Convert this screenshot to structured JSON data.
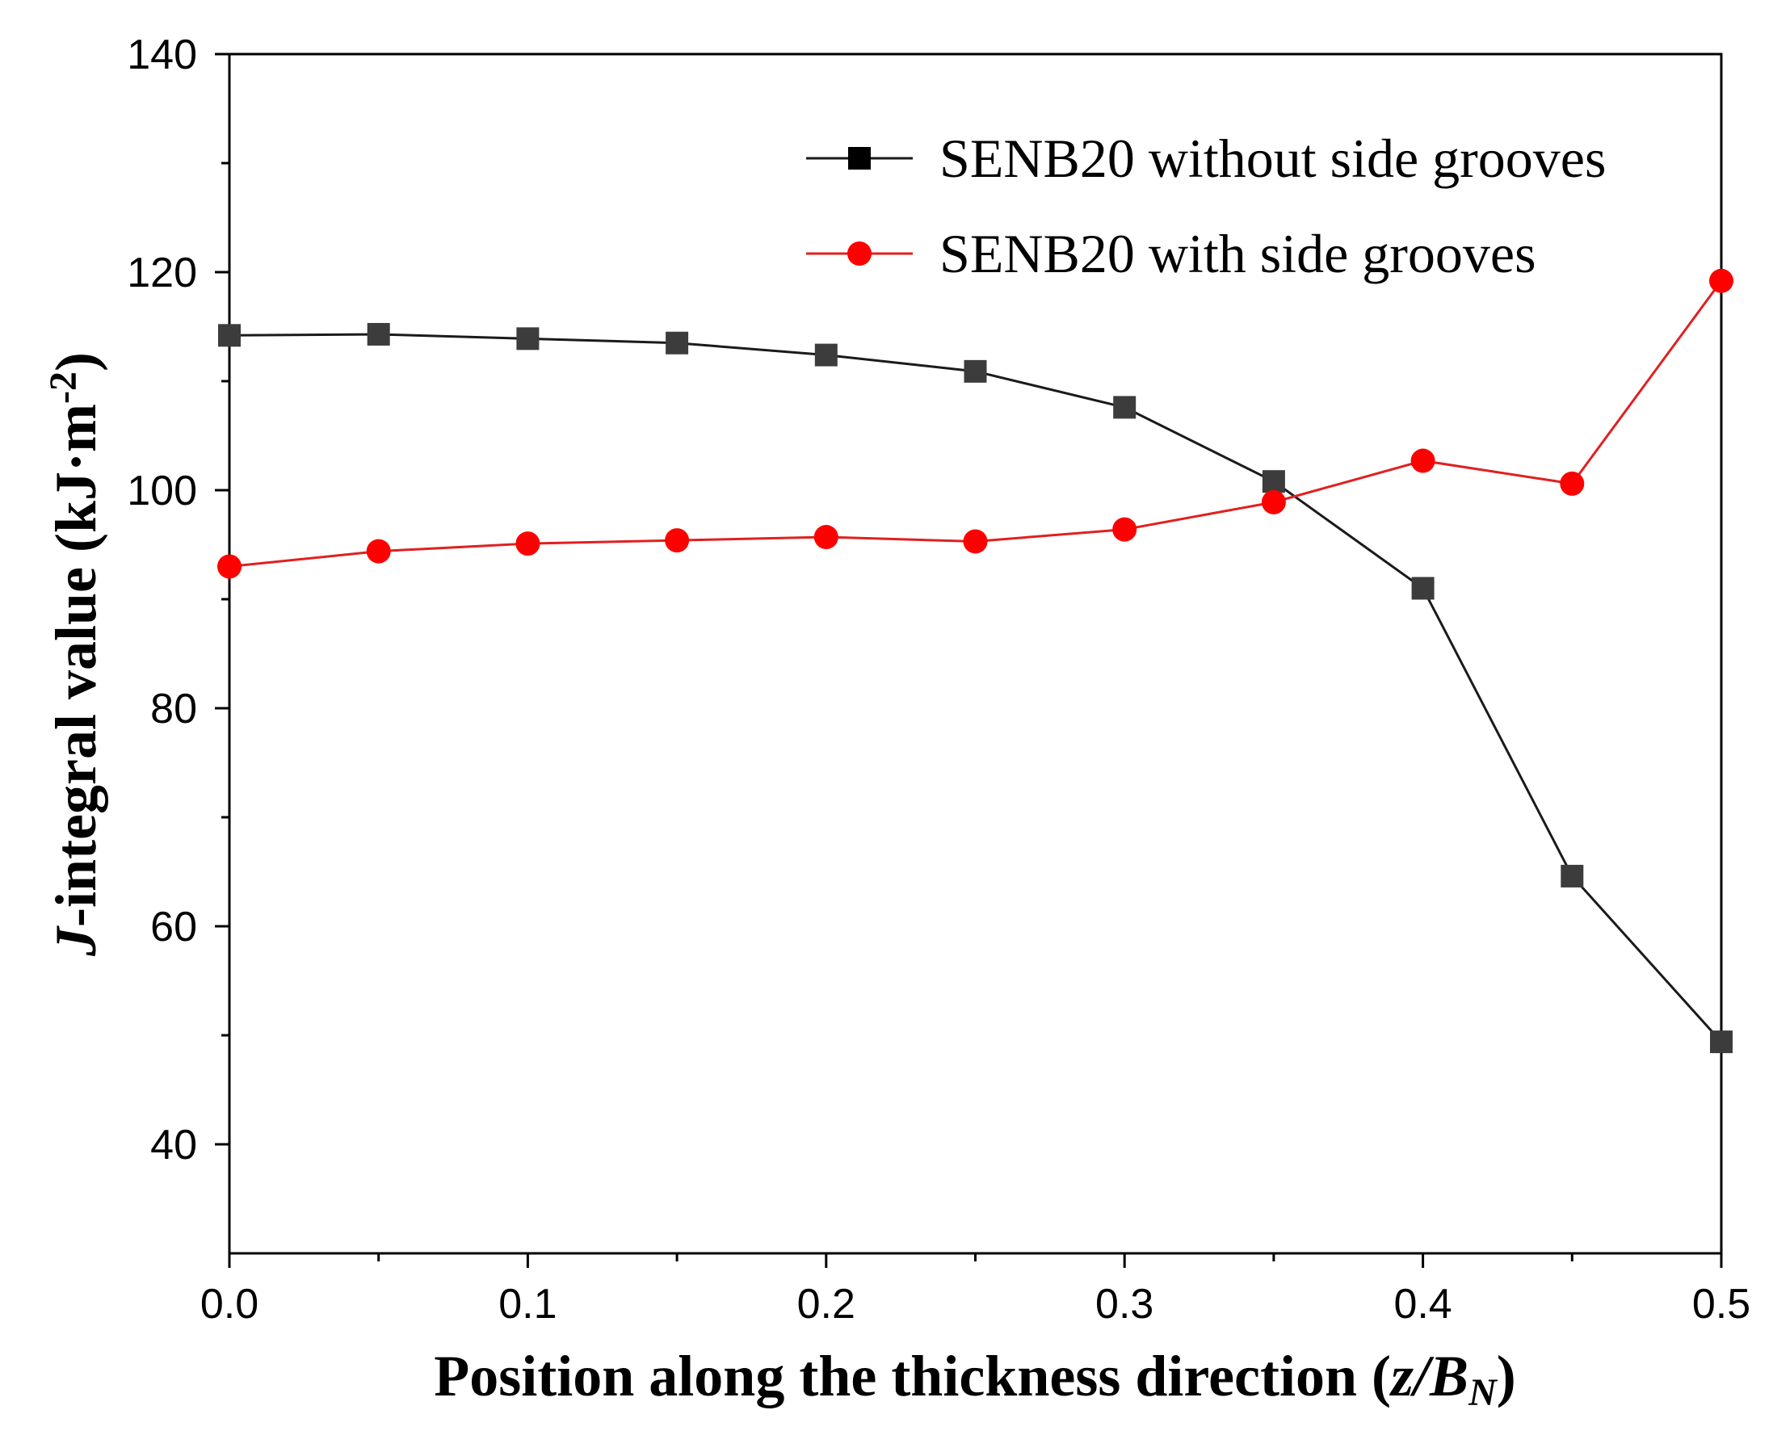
{
  "chart_data": {
    "type": "line",
    "title": "",
    "xlabel": {
      "prefix": "Position along the thickness direction (",
      "var_z": "z",
      "slash": "/",
      "var_b": "B",
      "sub_n": "N",
      "suffix": ")"
    },
    "ylabel": {
      "var_j": "J",
      "main": "-integral value (kJ·m",
      "sup": "-2",
      "suffix": ")"
    },
    "xlim": [
      0.0,
      0.5
    ],
    "ylim": [
      30,
      140
    ],
    "x_ticks_major": [
      0.0,
      0.1,
      0.2,
      0.3,
      0.4,
      0.5
    ],
    "x_tick_labels": [
      "0.0",
      "0.1",
      "0.2",
      "0.3",
      "0.4",
      "0.5"
    ],
    "x_ticks_minor": [
      0.05,
      0.15,
      0.25,
      0.35,
      0.45
    ],
    "y_ticks_major": [
      40,
      60,
      80,
      100,
      120,
      140
    ],
    "y_tick_labels": [
      "40",
      "60",
      "80",
      "100",
      "120",
      "140"
    ],
    "y_ticks_minor": [
      50,
      70,
      90,
      110,
      130
    ],
    "grid": false,
    "legend_position": "top-right",
    "x": [
      0.0,
      0.05,
      0.1,
      0.15,
      0.2,
      0.25,
      0.3,
      0.35,
      0.4,
      0.45,
      0.5
    ],
    "series": [
      {
        "name": "SENB20 without side grooves",
        "color": "#3c3c3c",
        "line_color": "#1a1a1a",
        "marker": "square",
        "values": [
          114.2,
          114.3,
          113.9,
          113.5,
          112.4,
          110.9,
          107.6,
          100.8,
          91.0,
          64.6,
          49.4
        ]
      },
      {
        "name": "SENB20 with side grooves",
        "color": "#ff0000",
        "line_color": "#e02020",
        "marker": "circle",
        "values": [
          93.0,
          94.4,
          95.1,
          95.4,
          95.7,
          95.3,
          96.4,
          98.9,
          102.7,
          100.6,
          119.2
        ]
      }
    ]
  }
}
